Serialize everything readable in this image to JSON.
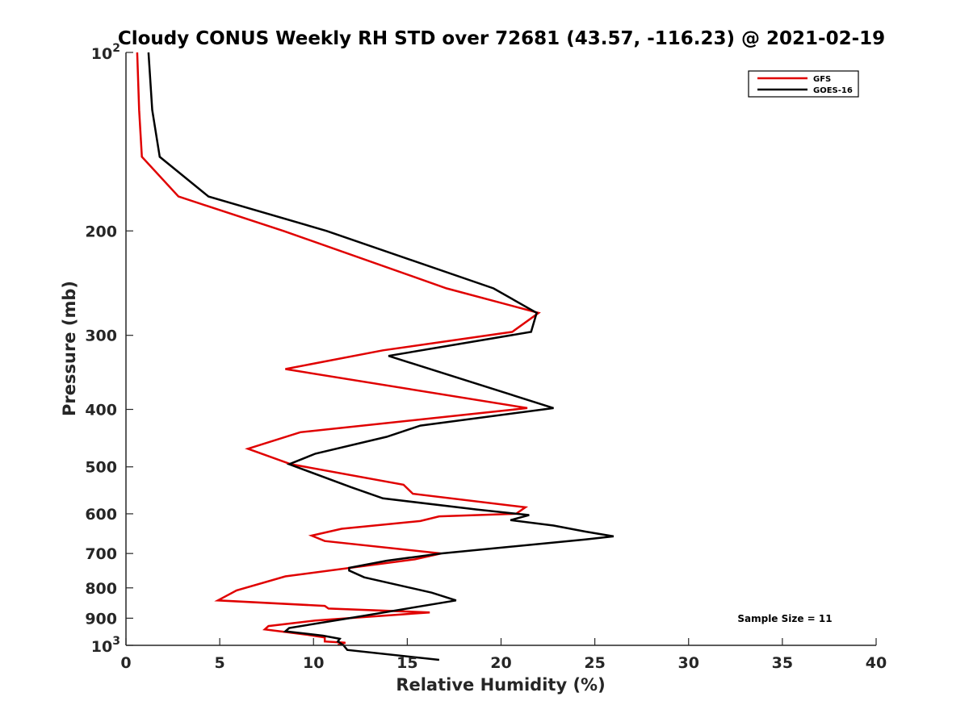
{
  "chart_data": {
    "type": "line",
    "title": "Cloudy CONUS Weekly RH STD over 72681 (43.57, -116.23) @ 2021-02-19",
    "xlabel": "Relative Humidity (%)",
    "ylabel": "Pressure (mb)",
    "xlim": [
      0,
      40
    ],
    "ylim": [
      100,
      1000
    ],
    "y_scale": "log",
    "y_reversed": true,
    "x_ticks": [
      0,
      5,
      10,
      15,
      20,
      25,
      30,
      35,
      40
    ],
    "x_tick_labels": [
      "0",
      "5",
      "10",
      "15",
      "20",
      "25",
      "30",
      "35",
      "40"
    ],
    "y_ticks": [
      100,
      200,
      300,
      400,
      500,
      600,
      700,
      800,
      900,
      1000
    ],
    "y_tick_labels": [
      {
        "base": "10",
        "exp": "2"
      },
      {
        "base": "200"
      },
      {
        "base": "300"
      },
      {
        "base": "400"
      },
      {
        "base": "500"
      },
      {
        "base": "600"
      },
      {
        "base": "700"
      },
      {
        "base": "800"
      },
      {
        "base": "900"
      },
      {
        "base": "10",
        "exp": "3"
      }
    ],
    "grid": false,
    "legend_position": "top-right",
    "annotation": "Sample Size = 11",
    "series": [
      {
        "name": "GFS",
        "color": "#e00000",
        "points": [
          [
            0.6,
            100
          ],
          [
            0.7,
            125
          ],
          [
            0.85,
            150
          ],
          [
            2.8,
            175
          ],
          [
            8.4,
            200
          ],
          [
            17.1,
            250
          ],
          [
            22.0,
            275
          ],
          [
            20.6,
            296
          ],
          [
            13.7,
            318
          ],
          [
            8.5,
            342
          ],
          [
            21.4,
            398
          ],
          [
            9.3,
            437
          ],
          [
            6.5,
            466
          ],
          [
            8.8,
            495
          ],
          [
            14.8,
            536
          ],
          [
            15.3,
            555
          ],
          [
            21.3,
            585
          ],
          [
            20.8,
            600
          ],
          [
            16.7,
            606
          ],
          [
            15.7,
            617
          ],
          [
            11.5,
            636
          ],
          [
            9.9,
            653
          ],
          [
            10.6,
            667
          ],
          [
            16.8,
            700
          ],
          [
            15.4,
            716
          ],
          [
            8.5,
            765
          ],
          [
            5.9,
            808
          ],
          [
            4.9,
            840
          ],
          [
            10.6,
            858
          ],
          [
            10.8,
            867
          ],
          [
            16.2,
            880
          ],
          [
            10.1,
            908
          ],
          [
            7.6,
            928
          ],
          [
            7.4,
            940
          ],
          [
            9.7,
            960
          ],
          [
            10.6,
            970
          ],
          [
            10.6,
            985
          ],
          [
            11.7,
            990
          ],
          [
            11.3,
            998
          ]
        ]
      },
      {
        "name": "GOES-16",
        "color": "#000000",
        "points": [
          [
            1.2,
            100
          ],
          [
            1.4,
            125
          ],
          [
            1.8,
            150
          ],
          [
            4.4,
            175
          ],
          [
            10.7,
            200
          ],
          [
            19.6,
            250
          ],
          [
            21.9,
            275
          ],
          [
            21.6,
            296
          ],
          [
            14.0,
            325
          ],
          [
            22.8,
            398
          ],
          [
            15.7,
            426
          ],
          [
            13.9,
            445
          ],
          [
            10.1,
            475
          ],
          [
            8.7,
            495
          ],
          [
            12.0,
            541
          ],
          [
            13.7,
            565
          ],
          [
            18.7,
            590
          ],
          [
            21.5,
            603
          ],
          [
            20.5,
            615
          ],
          [
            22.8,
            628
          ],
          [
            24.5,
            643
          ],
          [
            26.0,
            655
          ],
          [
            24.5,
            663
          ],
          [
            16.8,
            700
          ],
          [
            13.9,
            720
          ],
          [
            11.9,
            740
          ],
          [
            11.9,
            748
          ],
          [
            12.7,
            768
          ],
          [
            16.3,
            815
          ],
          [
            17.6,
            840
          ],
          [
            11.9,
            900
          ],
          [
            8.7,
            935
          ],
          [
            8.5,
            947
          ],
          [
            10.5,
            963
          ],
          [
            11.4,
            975
          ],
          [
            11.3,
            985
          ],
          [
            11.6,
            1000
          ],
          [
            11.8,
            1018
          ],
          [
            16.7,
            1058
          ]
        ]
      }
    ]
  }
}
